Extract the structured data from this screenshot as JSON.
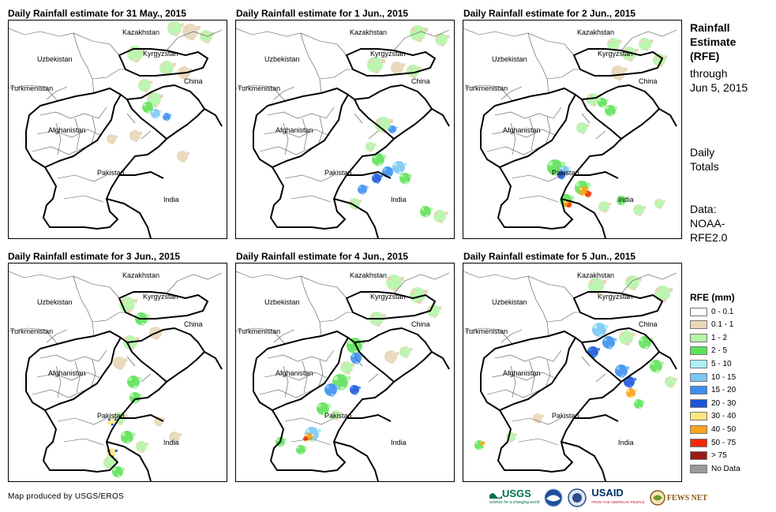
{
  "panels": [
    {
      "title": "Daily Rainfall estimate for 31 May., 2015",
      "day": 0
    },
    {
      "title": "Daily Rainfall estimate for 1 Jun., 2015",
      "day": 1
    },
    {
      "title": "Daily Rainfall estimate for 2 Jun., 2015",
      "day": 2
    },
    {
      "title": "Daily Rainfall estimate for 3 Jun., 2015",
      "day": 3
    },
    {
      "title": "Daily Rainfall estimate for 4 Jun., 2015",
      "day": 4
    },
    {
      "title": "Daily Rainfall estimate for 5 Jun., 2015",
      "day": 5
    }
  ],
  "map_labels": {
    "kazakhstan": "Kazakhstan",
    "uzbekistan": "Uzbekistan",
    "kyrgyzstan": "Kyrgyzstan",
    "turkmenistan": "Turkmenistan",
    "china": "China",
    "afghanistan": "Afghanistan",
    "pakistan": "Pakistan",
    "india": "India"
  },
  "side": {
    "title_lines": [
      "Rainfall",
      "Estimate",
      "(RFE)"
    ],
    "subtitle_lines": [
      "through",
      "Jun 5, 2015"
    ],
    "daily_lines": [
      "Daily",
      "Totals"
    ],
    "data_lines": [
      "Data:",
      "NOAA-",
      "RFE2.0"
    ]
  },
  "legend": {
    "title": "RFE (mm)",
    "items": [
      {
        "label": "0 - 0.1",
        "color": "#ffffff"
      },
      {
        "label": "0.1 - 1",
        "color": "#e8d7b8"
      },
      {
        "label": "1 - 2",
        "color": "#b4f5a8"
      },
      {
        "label": "2 - 5",
        "color": "#5ee25a"
      },
      {
        "label": "5 - 10",
        "color": "#aef0f5"
      },
      {
        "label": "10 - 15",
        "color": "#7cc6f5"
      },
      {
        "label": "15 - 20",
        "color": "#3c8ef0"
      },
      {
        "label": "20 - 30",
        "color": "#1c56d8"
      },
      {
        "label": "30 - 40",
        "color": "#fde57e"
      },
      {
        "label": "40 - 50",
        "color": "#fba21a"
      },
      {
        "label": "50 - 75",
        "color": "#f5280a"
      },
      {
        "label": "> 75",
        "color": "#9b1a1a"
      },
      {
        "label": "No Data",
        "color": "#9a9a9a"
      }
    ]
  },
  "credit": "Map produced by USGS/EROS",
  "logos": {
    "usgs": "USGS",
    "usgs_tagline": "science for a changing world",
    "usaid": "USAID",
    "usaid_tagline": "FROM THE AMERICAN PEOPLE",
    "fewsnet": "FEWS NET"
  }
}
